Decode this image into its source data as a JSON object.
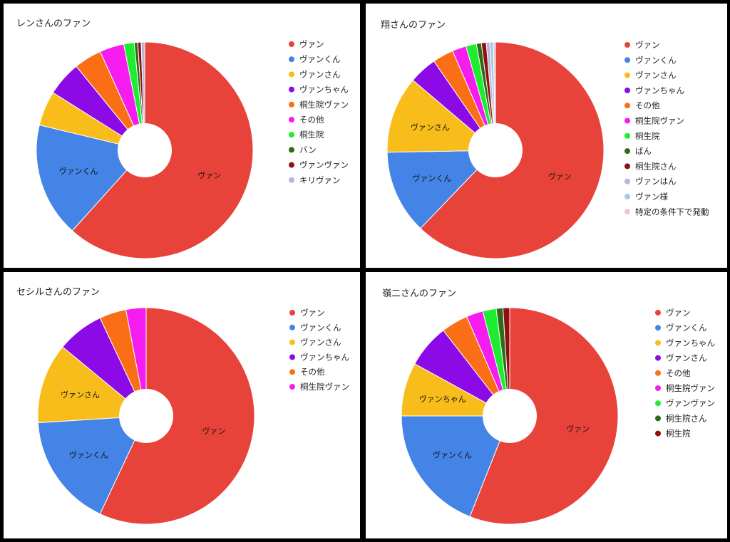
{
  "chart_data": [
    {
      "type": "pie",
      "donut": true,
      "title": "レンさんのファン",
      "legend_position": "right",
      "categories": [
        "ヴァン",
        "ヴァンくん",
        "ヴァンさん",
        "ヴァンちゃん",
        "桐生院ヴァン",
        "その他",
        "桐生院",
        "バン",
        "ヴァンヴァン",
        "キリヴァン"
      ],
      "values": [
        59.5,
        16.5,
        5.0,
        5.0,
        4.0,
        3.5,
        1.5,
        0.5,
        0.5,
        0.5
      ],
      "slice_labels": [
        "ヴァン",
        "ヴァンくん",
        "",
        "",
        "",
        "",
        "",
        "",
        "",
        ""
      ]
    },
    {
      "type": "pie",
      "donut": true,
      "title": "翔さんのファン",
      "legend_position": "right",
      "categories": [
        "ヴァン",
        "ヴァンくん",
        "ヴァンさん",
        "ヴァンちゃん",
        "その他",
        "桐生院ヴァン",
        "桐生院",
        "ばん",
        "桐生院さん",
        "ヴァンはん",
        "ヴァン様",
        "特定の条件下で発動"
      ],
      "values": [
        59.5,
        12.0,
        11.0,
        4.0,
        3.0,
        2.0,
        1.5,
        0.7,
        0.7,
        0.5,
        0.5,
        0.3
      ],
      "slice_labels": [
        "ヴァン",
        "ヴァンくん",
        "ヴァンさん",
        "",
        "",
        "",
        "",
        "",
        "",
        "",
        "",
        ""
      ]
    },
    {
      "type": "pie",
      "donut": true,
      "title": "セシルさんのファン",
      "legend_position": "right",
      "categories": [
        "ヴァン",
        "ヴァンくん",
        "ヴァンさん",
        "ヴァンちゃん",
        "その他",
        "桐生院ヴァン"
      ],
      "values": [
        57.0,
        17.0,
        12.0,
        7.0,
        4.0,
        3.0
      ],
      "slice_labels": [
        "ヴァン",
        "ヴァンくん",
        "ヴァンさん",
        "",
        "",
        ""
      ]
    },
    {
      "type": "pie",
      "donut": true,
      "title": "嶺二さんのファン",
      "legend_position": "right",
      "categories": [
        "ヴァン",
        "ヴァンくん",
        "ヴァンちゃん",
        "ヴァンさん",
        "その他",
        "桐生院ヴァン",
        "ヴァンヴァン",
        "桐生院さん",
        "桐生院"
      ],
      "values": [
        56.0,
        19.0,
        8.0,
        6.5,
        4.0,
        2.5,
        2.0,
        1.0,
        1.0
      ],
      "slice_labels": [
        "ヴァン",
        "ヴァンくん",
        "ヴァンちゃん",
        "",
        "",
        "",
        "",
        "",
        ""
      ]
    }
  ],
  "colors": [
    "#e8433a",
    "#4384e6",
    "#f8bd1a",
    "#8b0ae6",
    "#fa6f16",
    "#f51cf0",
    "#1ded2f",
    "#2c6b1a",
    "#930f0f",
    "#b6b6da",
    "#a8c7e8",
    "#f2c6c6"
  ]
}
